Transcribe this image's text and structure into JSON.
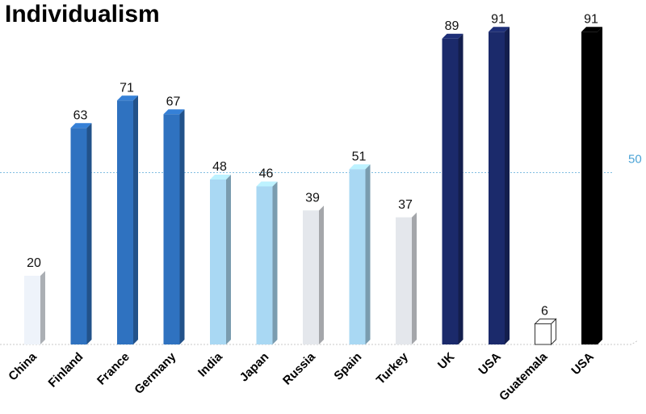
{
  "colors": {
    "white_bar": "#eef3fa",
    "mid_blue": "#2f72c0",
    "light_blue": "#a9d8f3",
    "gray_white": "#e4e7ec",
    "navy": "#1b2a6b",
    "outline": "#ffffff",
    "black": "#000000",
    "reference_line": "#4ba3d6"
  },
  "chart_data": {
    "type": "bar",
    "title": "Individualism",
    "xlabel": "",
    "ylabel": "",
    "ylim": [
      0,
      100
    ],
    "grid": false,
    "reference_line": {
      "value": 50,
      "label": "50"
    },
    "categories": [
      "China",
      "Finland",
      "France",
      "Germany",
      "India",
      "Japan",
      "Russia",
      "Spain",
      "Turkey",
      "UK",
      "USA",
      "Guatemala",
      "USA"
    ],
    "values": [
      20,
      63,
      71,
      67,
      48,
      46,
      39,
      51,
      37,
      89,
      91,
      6,
      91
    ],
    "bar_colors": [
      "white_bar",
      "mid_blue",
      "mid_blue",
      "mid_blue",
      "light_blue",
      "light_blue",
      "gray_white",
      "light_blue",
      "gray_white",
      "navy",
      "navy",
      "outline",
      "black"
    ]
  }
}
